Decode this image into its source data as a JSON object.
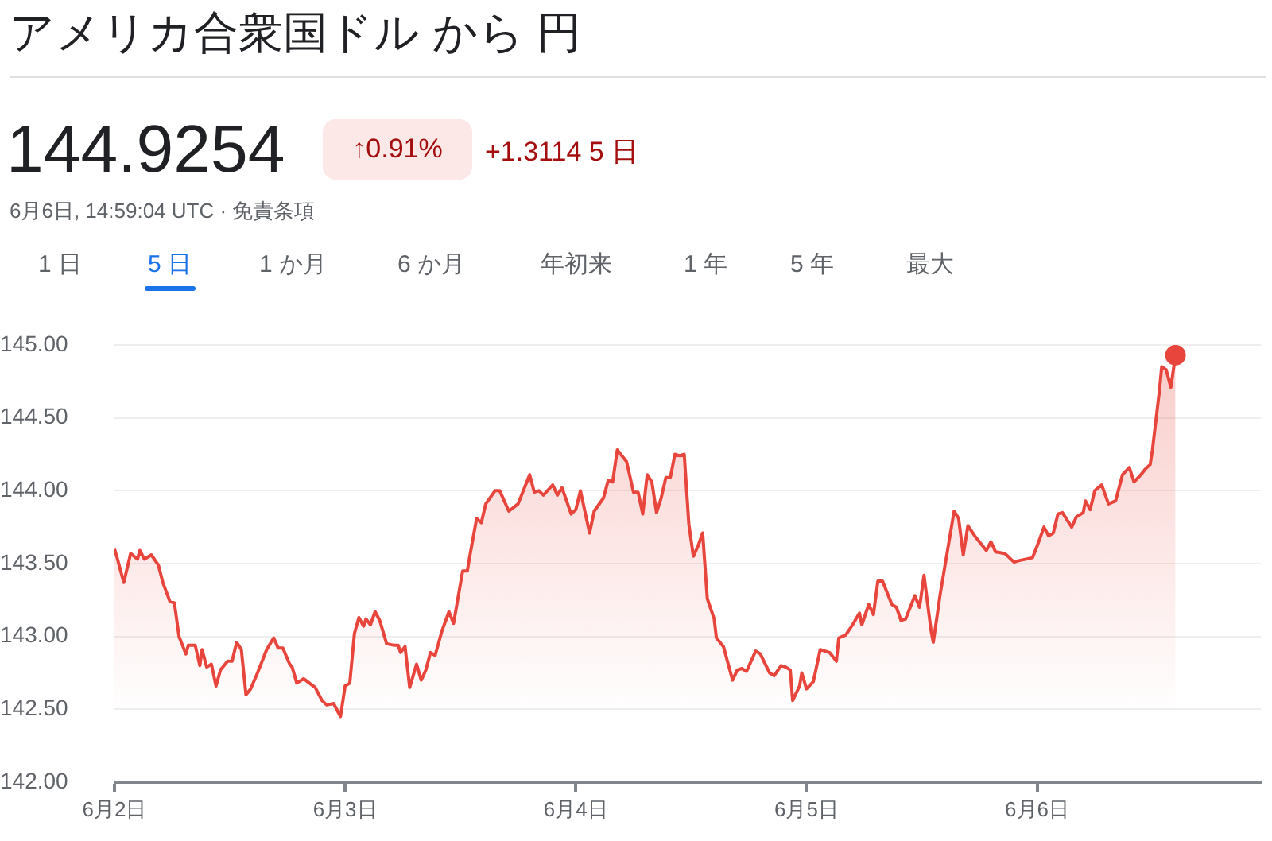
{
  "chart_data": {
    "type": "area",
    "title": "アメリカ合衆国ドル から 円",
    "annotations": [
      "144.9254",
      "↑0.91%",
      "+1.3114 5 日",
      "6月6日, 14:59:04 UTC · 免責条項",
      "1 日",
      "5 日",
      "1 か月",
      "6 か月",
      "年初来",
      "1 年",
      "5 年",
      "最大"
    ],
    "xlim": [
      "--06-02",
      "--06-06T23:17"
    ],
    "xticks": [
      {
        "value": "--06-02",
        "label": "6月2日"
      },
      {
        "value": "--06-03",
        "label": "6月3日"
      },
      {
        "value": "--06-04",
        "label": "6月4日"
      },
      {
        "value": "--06-05",
        "label": "6月5日"
      },
      {
        "value": "--06-06",
        "label": "6月6日"
      }
    ],
    "ylim": [
      142,
      145
    ],
    "yticks": [
      {
        "value": 142,
        "label": "142.00"
      },
      {
        "value": 142.5,
        "label": "142.50"
      },
      {
        "value": 143,
        "label": "143.00"
      },
      {
        "value": 143.5,
        "label": "143.50"
      },
      {
        "value": 144,
        "label": "144.00"
      },
      {
        "value": 144.5,
        "label": "144.50"
      },
      {
        "value": 145,
        "label": "145.00"
      }
    ],
    "grid": "y",
    "marker": "none",
    "line_style": "solid",
    "legend": false,
    "series": [
      {
        "color": "#e8453c",
        "x": [
          "--06-02T00:00",
          "--06-02T00:14",
          "--06-02T00:58",
          "--06-02T01:41",
          "--06-02T02:24",
          "--06-02T02:38",
          "--06-02T03:07",
          "--06-02T03:50",
          "--06-02T04:34",
          "--06-02T05:02",
          "--06-02T05:46",
          "--06-02T06:14",
          "--06-02T06:43",
          "--06-02T07:26",
          "--06-02T07:41",
          "--06-02T08:24",
          "--06-02T08:53",
          "--06-02T09:07",
          "--06-02T09:36",
          "--06-02T10:05",
          "--06-02T10:34",
          "--06-02T11:02",
          "--06-02T11:46",
          "--06-02T12:14",
          "--06-02T12:43",
          "--06-02T13:12",
          "--06-02T13:41",
          "--06-02T14:10",
          "--06-02T14:53",
          "--06-02T15:50",
          "--06-02T16:34",
          "--06-02T17:02",
          "--06-02T17:31",
          "--06-02T18:14",
          "--06-02T18:29",
          "--06-02T18:58",
          "--06-02T19:41",
          "--06-02T20:53",
          "--06-02T21:36",
          "--06-02T22:05",
          "--06-02T22:48",
          "--06-02T23:31",
          "--06-03T00:00",
          "--06-03T00:29",
          "--06-03T00:58",
          "--06-03T01:26",
          "--06-03T01:55",
          "--06-03T02:10",
          "--06-03T02:38",
          "--06-03T03:07",
          "--06-03T03:36",
          "--06-03T04:19",
          "--06-03T05:02",
          "--06-03T05:31",
          "--06-03T05:46",
          "--06-03T06:14",
          "--06-03T06:43",
          "--06-03T07:26",
          "--06-03T07:55",
          "--06-03T08:24",
          "--06-03T08:53",
          "--06-03T09:22",
          "--06-03T10:05",
          "--06-03T10:48",
          "--06-03T11:17",
          "--06-03T12:14",
          "--06-03T12:43",
          "--06-03T12:58",
          "--06-03T13:41",
          "--06-03T14:10",
          "--06-03T14:38",
          "--06-03T15:36",
          "--06-03T16:05",
          "--06-03T17:02",
          "--06-03T18:00",
          "--06-03T19:12",
          "--06-03T19:41",
          "--06-03T20:10",
          "--06-03T20:38",
          "--06-03T21:36",
          "--06-03T22:05",
          "--06-03T22:34",
          "--06-03T23:31",
          "--06-04T00:00",
          "--06-04T00:29",
          "--06-04T01:26",
          "--06-04T01:55",
          "--06-04T02:53",
          "--06-04T03:22",
          "--06-04T03:50",
          "--06-04T04:19",
          "--06-04T05:17",
          "--06-04T06:00",
          "--06-04T06:29",
          "--06-04T06:58",
          "--06-04T07:26",
          "--06-04T07:55",
          "--06-04T08:24",
          "--06-04T08:53",
          "--06-04T09:22",
          "--06-04T09:50",
          "--06-04T10:19",
          "--06-04T10:48",
          "--06-04T11:17",
          "--06-04T11:46",
          "--06-04T12:14",
          "--06-04T12:43",
          "--06-04T13:12",
          "--06-04T13:41",
          "--06-04T14:24",
          "--06-04T14:38",
          "--06-04T15:22",
          "--06-04T16:19",
          "--06-04T16:48",
          "--06-04T17:17",
          "--06-04T17:46",
          "--06-04T18:43",
          "--06-04T19:12",
          "--06-04T20:10",
          "--06-04T20:38",
          "--06-04T21:22",
          "--06-04T21:50",
          "--06-04T22:19",
          "--06-04T22:34",
          "--06-04T23:17",
          "--06-04T23:31",
          "--06-05T00:00",
          "--06-05T00:43",
          "--06-05T01:26",
          "--06-05T02:24",
          "--06-05T03:07",
          "--06-05T03:22",
          "--06-05T04:05",
          "--06-05T04:48",
          "--06-05T05:31",
          "--06-05T05:46",
          "--06-05T06:29",
          "--06-05T06:58",
          "--06-05T07:26",
          "--06-05T07:55",
          "--06-05T08:53",
          "--06-05T09:22",
          "--06-05T09:50",
          "--06-05T10:19",
          "--06-05T11:17",
          "--06-05T11:46",
          "--06-05T12:14",
          "--06-05T12:58",
          "--06-05T13:12",
          "--06-05T13:55",
          "--06-05T15:22",
          "--06-05T15:50",
          "--06-05T16:19",
          "--06-05T16:48",
          "--06-05T17:31",
          "--06-05T18:43",
          "--06-05T19:12",
          "--06-05T19:41",
          "--06-05T20:38",
          "--06-05T21:36",
          "--06-05T22:05",
          "--06-05T23:31",
          "--06-06T00:00",
          "--06-06T00:43",
          "--06-06T01:12",
          "--06-06T01:41",
          "--06-06T02:10",
          "--06-06T02:38",
          "--06-06T03:36",
          "--06-06T04:05",
          "--06-06T04:48",
          "--06-06T05:02",
          "--06-06T05:31",
          "--06-06T06:00",
          "--06-06T06:43",
          "--06-06T07:26",
          "--06-06T08:10",
          "--06-06T08:53",
          "--06-06T09:36",
          "--06-06T10:05",
          "--06-06T10:48",
          "--06-06T11:17",
          "--06-06T11:46",
          "--06-06T12:00",
          "--06-06T12:43",
          "--06-06T12:58",
          "--06-06T13:26",
          "--06-06T13:55",
          "--06-06T14:24"
        ],
        "values": [
          143.6,
          143.55,
          143.37,
          143.57,
          143.53,
          143.59,
          143.53,
          143.56,
          143.49,
          143.37,
          143.24,
          143.23,
          143.0,
          142.88,
          142.94,
          142.94,
          142.8,
          142.91,
          142.79,
          142.81,
          142.66,
          142.77,
          142.83,
          142.83,
          142.96,
          142.91,
          142.6,
          142.64,
          142.75,
          142.91,
          142.99,
          142.92,
          142.92,
          142.81,
          142.79,
          142.68,
          142.71,
          142.65,
          142.56,
          142.53,
          142.54,
          142.45,
          142.66,
          142.68,
          143.02,
          143.13,
          143.07,
          143.12,
          143.08,
          143.17,
          143.11,
          142.95,
          142.94,
          142.94,
          142.89,
          142.93,
          142.65,
          142.81,
          142.7,
          142.77,
          142.89,
          142.87,
          143.04,
          143.17,
          143.09,
          143.45,
          143.45,
          143.55,
          143.81,
          143.78,
          143.91,
          144.0,
          144.0,
          143.86,
          143.91,
          144.11,
          143.99,
          144.0,
          143.97,
          144.04,
          143.97,
          144.02,
          143.84,
          143.87,
          144.0,
          143.71,
          143.86,
          143.95,
          144.07,
          144.06,
          144.28,
          144.2,
          143.99,
          143.99,
          143.84,
          144.11,
          144.06,
          143.85,
          143.95,
          144.09,
          144.09,
          144.25,
          144.24,
          144.25,
          143.77,
          143.55,
          143.62,
          143.71,
          143.26,
          143.12,
          142.99,
          142.93,
          142.7,
          142.77,
          142.78,
          142.76,
          142.9,
          142.88,
          142.75,
          142.73,
          142.8,
          142.79,
          142.77,
          142.56,
          142.66,
          142.75,
          142.64,
          142.69,
          142.91,
          142.89,
          142.83,
          142.99,
          143.01,
          143.08,
          143.16,
          143.08,
          143.22,
          143.15,
          143.38,
          143.38,
          143.22,
          143.2,
          143.11,
          143.12,
          143.28,
          143.2,
          143.42,
          143.04,
          142.96,
          143.29,
          143.86,
          143.81,
          143.56,
          143.76,
          143.69,
          143.59,
          143.65,
          143.58,
          143.57,
          143.51,
          143.52,
          143.54,
          143.62,
          143.75,
          143.69,
          143.71,
          143.84,
          143.85,
          143.75,
          143.82,
          143.85,
          143.93,
          143.87,
          144.0,
          144.04,
          143.91,
          143.93,
          144.11,
          144.16,
          144.06,
          144.11,
          144.15,
          144.18,
          144.28,
          144.68,
          144.85,
          144.83,
          144.71,
          144.93
        ]
      },
      {
        "type": "scatter",
        "marker": "circle",
        "color": "#e8453c",
        "x": [
          "--06-06T14:24"
        ],
        "values": [
          144.93
        ]
      }
    ]
  }
}
